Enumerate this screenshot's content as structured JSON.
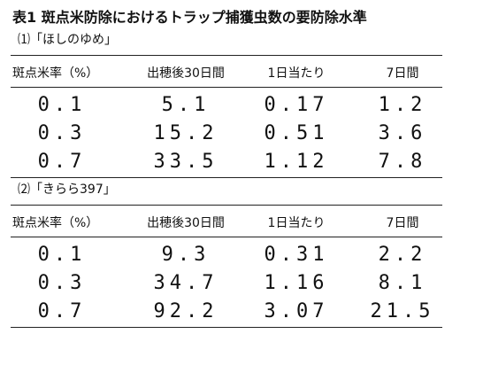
{
  "title": "表1 斑点米防除におけるトラップ捕獲虫数の要防除水準",
  "sections": [
    {
      "label": "⑴「ほしのゆめ」",
      "header": [
        "斑点米率（%）",
        "出穂後30日間",
        "1日当たり",
        "7日間"
      ],
      "rows": [
        [
          "0.1",
          "5.1",
          "0.17",
          "1.2"
        ],
        [
          "0.3",
          "15.2",
          "0.51",
          "3.6"
        ],
        [
          "0.7",
          "33.5",
          "1.12",
          "7.8"
        ]
      ]
    },
    {
      "label": "⑵「きらら397」",
      "header": [
        "斑点米率（%）",
        "出穂後30日間",
        "1日当たり",
        "7日間"
      ],
      "rows": [
        [
          "0.1",
          "9.3",
          "0.31",
          "2.2"
        ],
        [
          "0.3",
          "34.7",
          "1.16",
          "8.1"
        ],
        [
          "0.7",
          "92.2",
          "3.07",
          "21.5"
        ]
      ]
    }
  ]
}
